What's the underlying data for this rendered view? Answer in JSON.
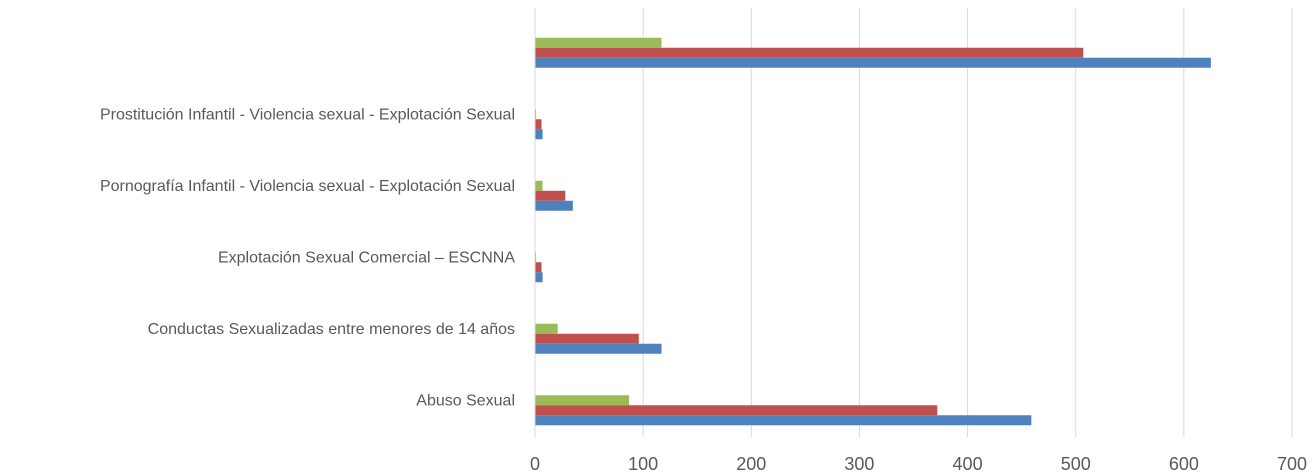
{
  "chart_data": {
    "type": "barh",
    "categories": [
      null,
      "Prostitución Infantil - Violencia sexual - Explotación Sexual",
      "Pornografía Infantil - Violencia sexual - Explotación Sexual",
      "Explotación Sexual Comercial – ESCNNA",
      "Conductas Sexualizadas entre menores de 14 años",
      "Abuso Sexual"
    ],
    "series": [
      {
        "color": "#9bbb59",
        "values": [
          117,
          1,
          7,
          1,
          21,
          87
        ]
      },
      {
        "color": "#c0504d",
        "values": [
          507,
          6,
          28,
          6,
          96,
          372
        ]
      },
      {
        "color": "#4f81bd",
        "values": [
          625,
          7,
          35,
          7,
          117,
          459
        ]
      }
    ],
    "xlim": [
      0,
      700
    ],
    "xticks": [
      0,
      100,
      200,
      300,
      400,
      500,
      600,
      700
    ],
    "grid": true
  }
}
